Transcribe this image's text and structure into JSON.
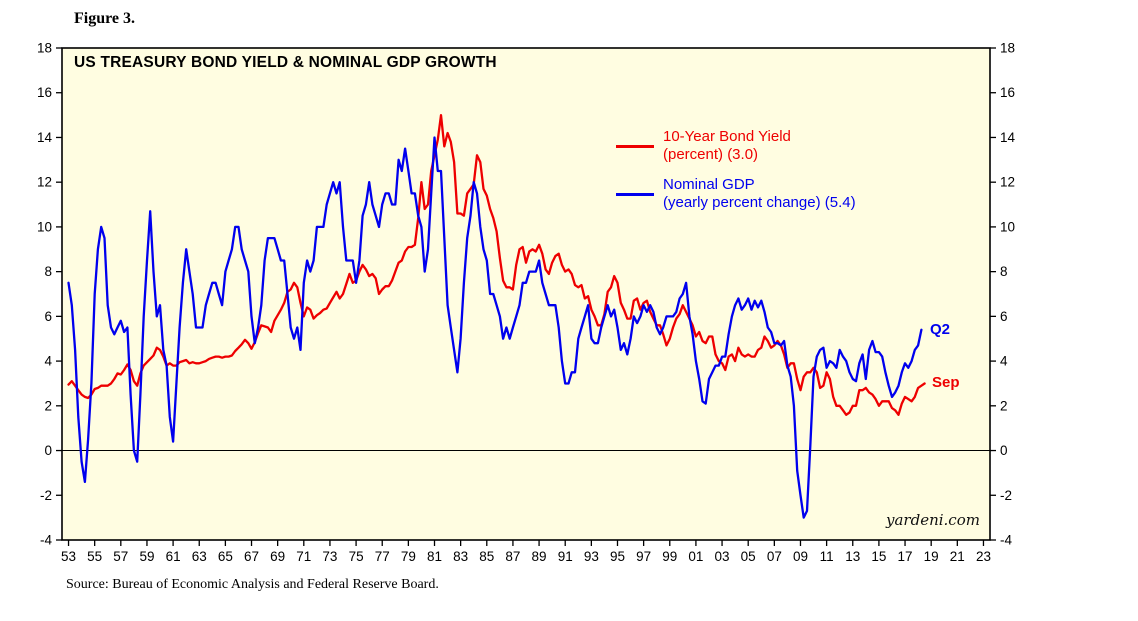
{
  "figure_label": "Figure 3.",
  "source_note": "Source: Bureau of Economic Analysis and Federal Reserve Board.",
  "watermark": "yardeni.com",
  "chart_data": {
    "type": "line",
    "title": "US TREASURY BOND YIELD & NOMINAL GDP GROWTH",
    "background": "#FFFDE1",
    "frame_color": "#000000",
    "xlim": [
      1952.5,
      2023.5
    ],
    "ylim": [
      -4,
      18
    ],
    "y_ticks": [
      -4,
      -2,
      0,
      2,
      4,
      6,
      8,
      10,
      12,
      14,
      16,
      18
    ],
    "x_tick_years": [
      1953,
      1955,
      1957,
      1959,
      1961,
      1963,
      1965,
      1967,
      1969,
      1971,
      1973,
      1975,
      1977,
      1979,
      1981,
      1983,
      1985,
      1987,
      1989,
      1991,
      1993,
      1995,
      1997,
      1999,
      2001,
      2003,
      2005,
      2007,
      2009,
      2011,
      2013,
      2015,
      2017,
      2019,
      2021,
      2023
    ],
    "x_tick_labels": [
      "53",
      "55",
      "57",
      "59",
      "61",
      "63",
      "65",
      "67",
      "69",
      "71",
      "73",
      "75",
      "77",
      "79",
      "81",
      "83",
      "85",
      "87",
      "89",
      "91",
      "93",
      "95",
      "97",
      "99",
      "01",
      "03",
      "05",
      "07",
      "09",
      "11",
      "13",
      "15",
      "17",
      "19",
      "21",
      "23"
    ],
    "zero_line": true,
    "x_start_year": 1953.0,
    "x_step": 0.25,
    "series": [
      {
        "name": "10-Year Bond Yield",
        "legend_line1": "10-Year Bond Yield",
        "legend_line2": "(percent) (3.0)",
        "latest_value": 3.0,
        "end_label": "Sep",
        "color": "#EE0000",
        "values": [
          2.95,
          3.1,
          2.9,
          2.7,
          2.5,
          2.4,
          2.35,
          2.5,
          2.75,
          2.8,
          2.9,
          2.9,
          2.9,
          3.0,
          3.2,
          3.45,
          3.4,
          3.6,
          3.85,
          3.6,
          3.1,
          2.9,
          3.45,
          3.8,
          3.95,
          4.1,
          4.25,
          4.6,
          4.5,
          4.2,
          3.8,
          3.9,
          3.8,
          3.8,
          3.95,
          4.0,
          4.05,
          3.9,
          3.95,
          3.9,
          3.9,
          3.95,
          4.0,
          4.1,
          4.15,
          4.2,
          4.2,
          4.15,
          4.2,
          4.2,
          4.25,
          4.45,
          4.6,
          4.75,
          4.95,
          4.8,
          4.55,
          4.85,
          5.25,
          5.6,
          5.55,
          5.5,
          5.3,
          5.8,
          6.05,
          6.3,
          6.6,
          7.1,
          7.2,
          7.5,
          7.3,
          6.6,
          6.0,
          6.4,
          6.3,
          5.9,
          6.05,
          6.15,
          6.3,
          6.35,
          6.6,
          6.85,
          7.1,
          6.8,
          7.0,
          7.45,
          7.9,
          7.5,
          7.6,
          8.0,
          8.3,
          8.1,
          7.8,
          7.9,
          7.7,
          7.0,
          7.2,
          7.35,
          7.35,
          7.6,
          8.0,
          8.4,
          8.5,
          8.9,
          9.1,
          9.1,
          9.2,
          10.4,
          12.0,
          10.8,
          11.0,
          12.5,
          13.2,
          13.9,
          15.0,
          13.6,
          14.2,
          13.8,
          12.9,
          10.6,
          10.6,
          10.5,
          11.5,
          11.7,
          11.9,
          13.2,
          12.9,
          11.7,
          11.4,
          10.8,
          10.4,
          9.8,
          8.6,
          7.6,
          7.3,
          7.3,
          7.2,
          8.3,
          9.0,
          9.1,
          8.4,
          8.9,
          9.0,
          8.9,
          9.2,
          8.8,
          8.1,
          7.9,
          8.4,
          8.7,
          8.8,
          8.3,
          8.0,
          8.1,
          7.9,
          7.4,
          7.3,
          7.4,
          6.8,
          6.9,
          6.3,
          6.0,
          5.6,
          5.6,
          6.1,
          7.1,
          7.3,
          7.8,
          7.5,
          6.6,
          6.3,
          5.9,
          5.9,
          6.7,
          6.8,
          6.3,
          6.6,
          6.7,
          6.2,
          5.9,
          5.6,
          5.6,
          5.2,
          4.7,
          5.0,
          5.5,
          5.9,
          6.1,
          6.5,
          6.2,
          5.9,
          5.6,
          5.1,
          5.3,
          4.9,
          4.8,
          5.1,
          5.1,
          4.3,
          4.0,
          3.9,
          3.6,
          4.2,
          4.3,
          4.0,
          4.6,
          4.3,
          4.2,
          4.3,
          4.2,
          4.2,
          4.5,
          4.6,
          5.1,
          4.9,
          4.6,
          4.7,
          4.9,
          4.7,
          4.3,
          3.7,
          3.9,
          3.9,
          3.2,
          2.7,
          3.3,
          3.5,
          3.5,
          3.7,
          3.5,
          2.8,
          2.9,
          3.5,
          3.2,
          2.4,
          2.0,
          2.0,
          1.8,
          1.6,
          1.7,
          2.0,
          2.0,
          2.7,
          2.7,
          2.8,
          2.6,
          2.5,
          2.3,
          2.0,
          2.2,
          2.2,
          2.2,
          1.9,
          1.8,
          1.6,
          2.1,
          2.4,
          2.3,
          2.2,
          2.4,
          2.8,
          2.9,
          3.0
        ]
      },
      {
        "name": "Nominal GDP",
        "legend_line1": "Nominal GDP",
        "legend_line2": "(yearly percent change) (5.4)",
        "latest_value": 5.4,
        "end_label": "Q2",
        "color": "#0000EE",
        "values": [
          7.5,
          6.5,
          4.5,
          1.5,
          -0.5,
          -1.4,
          0.5,
          3.0,
          7.0,
          9.0,
          10.0,
          9.5,
          6.5,
          5.5,
          5.2,
          5.5,
          5.8,
          5.3,
          5.5,
          2.5,
          0.0,
          -0.5,
          2.5,
          6.0,
          8.5,
          10.7,
          8.0,
          6.0,
          6.5,
          4.5,
          3.8,
          1.5,
          0.4,
          3.0,
          5.5,
          7.5,
          9.0,
          8.0,
          7.0,
          5.5,
          5.5,
          5.5,
          6.5,
          7.0,
          7.5,
          7.5,
          7.0,
          6.5,
          8.0,
          8.5,
          9.0,
          10.0,
          10.0,
          9.0,
          8.5,
          8.0,
          6.0,
          4.8,
          5.5,
          6.5,
          8.5,
          9.5,
          9.5,
          9.5,
          9.0,
          8.5,
          8.5,
          7.0,
          5.5,
          5.0,
          5.5,
          4.5,
          7.5,
          8.5,
          8.0,
          8.5,
          10.0,
          10.0,
          10.0,
          11.0,
          11.5,
          12.0,
          11.5,
          12.0,
          10.0,
          8.5,
          8.5,
          8.5,
          7.5,
          8.5,
          10.5,
          11.0,
          12.0,
          11.0,
          10.5,
          10.0,
          11.0,
          11.5,
          11.5,
          11.0,
          11.0,
          13.0,
          12.5,
          13.5,
          12.5,
          11.5,
          11.5,
          10.5,
          10.0,
          8.0,
          9.0,
          11.5,
          14.0,
          12.5,
          12.5,
          9.5,
          6.5,
          5.5,
          4.5,
          3.5,
          5.0,
          7.5,
          9.5,
          10.5,
          12.0,
          11.5,
          10.0,
          9.0,
          8.5,
          7.0,
          7.0,
          6.5,
          6.0,
          5.0,
          5.5,
          5.0,
          5.5,
          6.0,
          6.5,
          7.5,
          7.5,
          8.0,
          8.0,
          8.0,
          8.5,
          7.5,
          7.0,
          6.5,
          6.5,
          6.5,
          5.5,
          4.0,
          3.0,
          3.0,
          3.5,
          3.5,
          5.0,
          5.5,
          6.0,
          6.5,
          5.0,
          4.8,
          4.8,
          5.5,
          6.0,
          6.5,
          6.0,
          6.3,
          5.5,
          4.5,
          4.8,
          4.3,
          5.0,
          6.0,
          5.7,
          6.0,
          6.5,
          6.2,
          6.5,
          6.2,
          5.5,
          5.2,
          5.5,
          6.0,
          6.0,
          6.0,
          6.2,
          6.8,
          7.0,
          7.5,
          6.0,
          5.2,
          4.0,
          3.2,
          2.2,
          2.1,
          3.2,
          3.5,
          3.8,
          3.8,
          4.2,
          4.2,
          5.2,
          6.0,
          6.5,
          6.8,
          6.3,
          6.5,
          6.8,
          6.3,
          6.7,
          6.4,
          6.7,
          6.2,
          5.5,
          5.3,
          4.8,
          4.8,
          4.7,
          4.9,
          3.8,
          3.3,
          2.0,
          -0.9,
          -2.0,
          -3.0,
          -2.7,
          0.2,
          3.3,
          4.2,
          4.5,
          4.6,
          3.7,
          4.0,
          3.9,
          3.7,
          4.5,
          4.2,
          4.0,
          3.5,
          3.2,
          3.1,
          3.9,
          4.3,
          3.2,
          4.5,
          4.9,
          4.4,
          4.4,
          4.2,
          3.5,
          2.9,
          2.4,
          2.6,
          2.9,
          3.5,
          3.9,
          3.7,
          4.0,
          4.5,
          4.7,
          5.4
        ]
      }
    ]
  }
}
